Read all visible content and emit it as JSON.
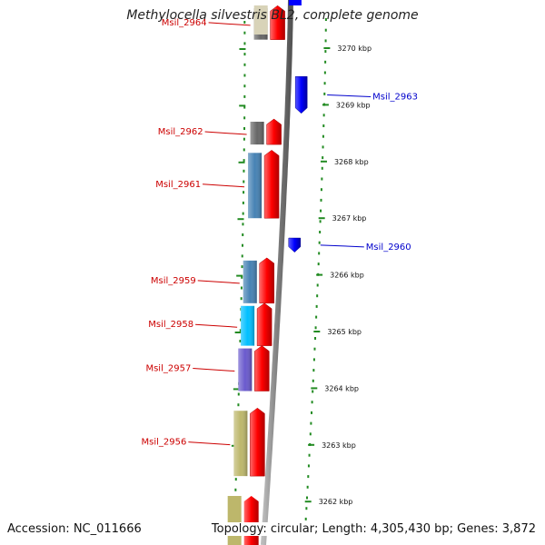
{
  "title": "Methylocella silvestris BL2, complete genome",
  "footer": {
    "accession": "Accession: NC_011666",
    "summary": "Topology: circular; Length: 4,305,430 bp; Genes: 3,872"
  },
  "colors": {
    "forward_strand": "#ff0000",
    "reverse_strand": "#0000ff",
    "label_forward": "#cc0000",
    "label_reverse": "#0000cc",
    "tick": "#228b22",
    "backbone": "#888888"
  },
  "kbp_ticks": [
    {
      "label": "3270 kbp",
      "kbp": 3270
    },
    {
      "label": "3269 kbp",
      "kbp": 3269
    },
    {
      "label": "3268 kbp",
      "kbp": 3268
    },
    {
      "label": "3267 kbp",
      "kbp": 3267
    },
    {
      "label": "3266 kbp",
      "kbp": 3266
    },
    {
      "label": "3265 kbp",
      "kbp": 3265
    },
    {
      "label": "3264 kbp",
      "kbp": 3264
    },
    {
      "label": "3263 kbp",
      "kbp": 3263
    },
    {
      "label": "3262 kbp",
      "kbp": 3262
    }
  ],
  "genes": [
    {
      "name": "Msil_2964",
      "strand": "+",
      "start_kbp": 3270.15,
      "end_kbp": 3270.75,
      "cog_color": "#666666"
    },
    {
      "name": "Msil_2963",
      "strand": "-",
      "start_kbp": 3268.85,
      "end_kbp": 3269.5,
      "cog_color": null
    },
    {
      "name": "Msil_2962",
      "strand": "+",
      "start_kbp": 3268.3,
      "end_kbp": 3268.75,
      "cog_color": "#666666"
    },
    {
      "name": "Msil_2961",
      "strand": "+",
      "start_kbp": 3267.0,
      "end_kbp": 3268.2,
      "cog_color": "#4682b4"
    },
    {
      "name": "Msil_2960",
      "strand": "-",
      "start_kbp": 3266.4,
      "end_kbp": 3266.65,
      "cog_color": null
    },
    {
      "name": "Msil_2959",
      "strand": "+",
      "start_kbp": 3265.5,
      "end_kbp": 3266.3,
      "cog_color": "#4682b4"
    },
    {
      "name": "Msil_2958",
      "strand": "+",
      "start_kbp": 3264.75,
      "end_kbp": 3265.5,
      "cog_color": "#00bfff"
    },
    {
      "name": "Msil_2957",
      "strand": "+",
      "start_kbp": 3263.95,
      "end_kbp": 3264.75,
      "cog_color": "#6a5acd"
    },
    {
      "name": "Msil_2956",
      "strand": "+",
      "start_kbp": 3262.45,
      "end_kbp": 3263.65,
      "cog_color": "#bdb76b"
    }
  ]
}
